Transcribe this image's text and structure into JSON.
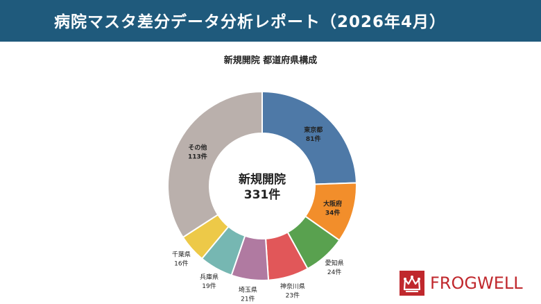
{
  "header": {
    "title": "病院マスタ差分データ分析レポート（2026年4月）"
  },
  "colors": {
    "banner": "#1f5a7c",
    "brand_red": "#c0282d"
  },
  "logo": {
    "icon": "frog-crown-icon",
    "text": "FROGWELL"
  },
  "chart_data": {
    "type": "pie",
    "variant": "donut",
    "title": "新規開院 都道府県構成",
    "center_label": {
      "line1": "新規開院",
      "line2": "331件"
    },
    "total": 331,
    "unit": "件",
    "slices": [
      {
        "name": "東京都",
        "value": 81,
        "label": "81件",
        "color": "#4e79a7"
      },
      {
        "name": "大阪府",
        "value": 34,
        "label": "34件",
        "color": "#f28e2b"
      },
      {
        "name": "愛知県",
        "value": 24,
        "label": "24件",
        "color": "#59a14f"
      },
      {
        "name": "神奈川県",
        "value": 23,
        "label": "23件",
        "color": "#e15759"
      },
      {
        "name": "埼玉県",
        "value": 21,
        "label": "21件",
        "color": "#b07aa1"
      },
      {
        "name": "兵庫県",
        "value": 19,
        "label": "19件",
        "color": "#76b7b2"
      },
      {
        "name": "千葉県",
        "value": 16,
        "label": "16件",
        "color": "#edc948"
      },
      {
        "name": "その他",
        "value": 113,
        "label": "113件",
        "color": "#bab0ac"
      }
    ]
  }
}
